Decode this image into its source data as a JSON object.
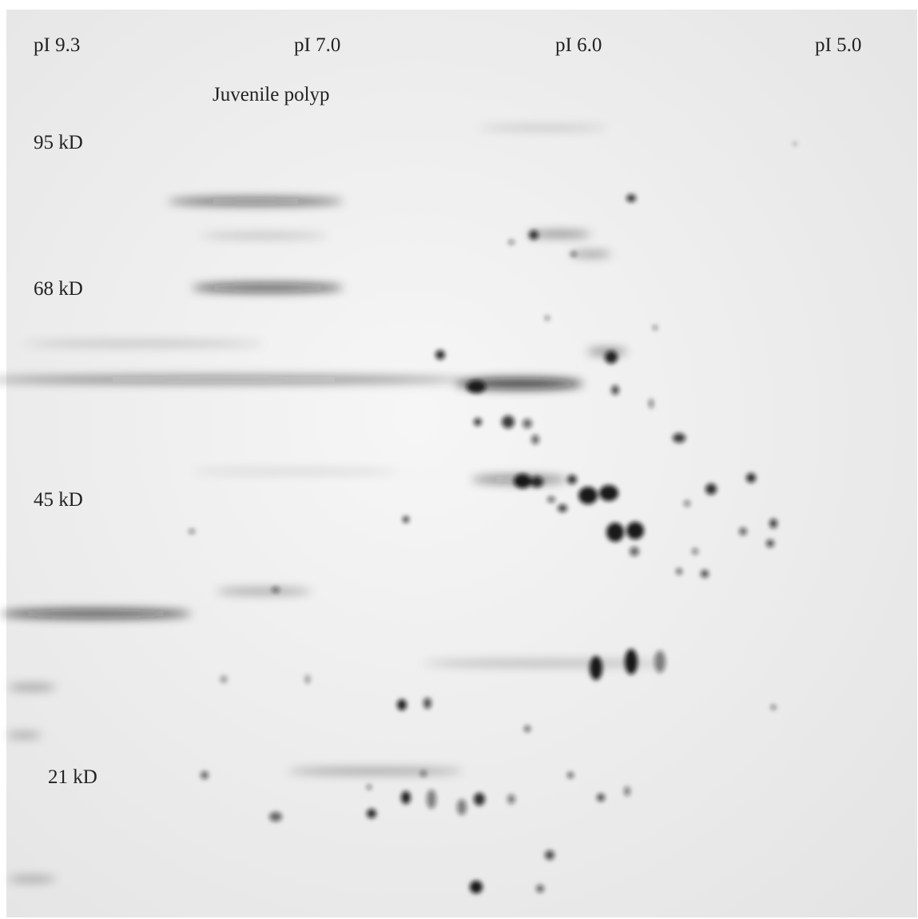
{
  "labels": {
    "pi": [
      "pI 9.3",
      "pI 7.0",
      "pI 6.0",
      "pI 5.0"
    ],
    "mass": [
      "95 kD",
      "68 kD",
      "45 kD",
      "21 kD"
    ],
    "sample": "Juvenile polyp"
  }
}
